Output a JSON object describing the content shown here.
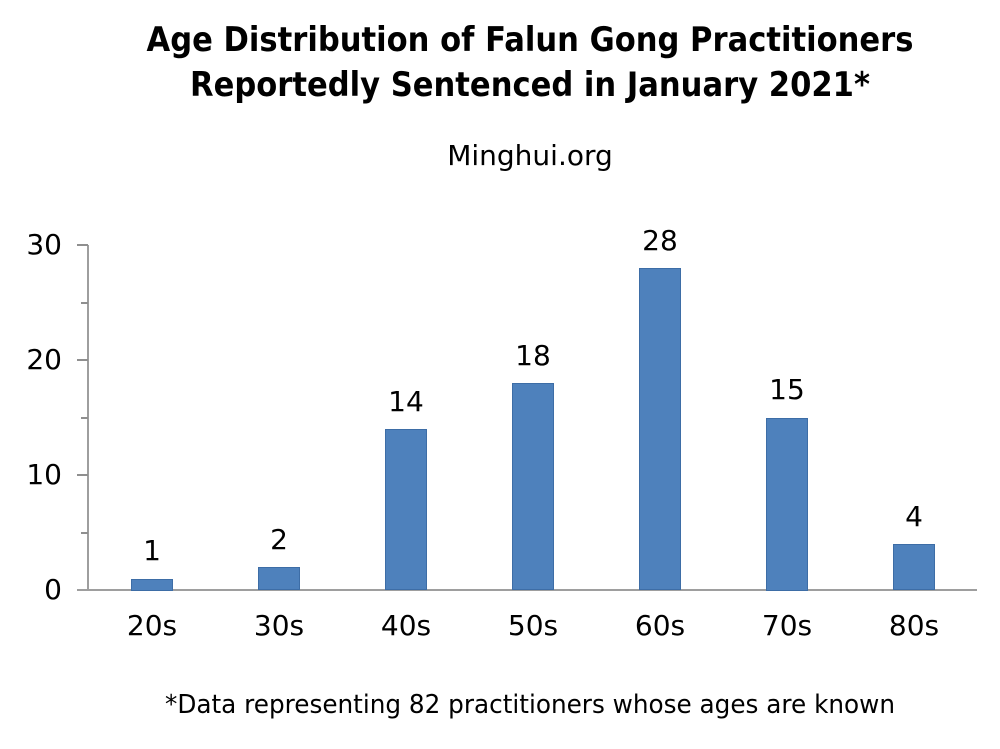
{
  "chart_data": {
    "type": "bar",
    "title": "Age Distribution of Falun Gong Practitioners\nReportedly Sentenced in January 2021*",
    "subtitle": "Minghui.org",
    "footnote": "*Data representing 82 practitioners whose ages are known",
    "categories": [
      "20s",
      "30s",
      "40s",
      "50s",
      "60s",
      "70s",
      "80s"
    ],
    "values": [
      1,
      2,
      14,
      18,
      28,
      15,
      4
    ],
    "xlabel": "",
    "ylabel": "",
    "ylim": [
      0,
      30
    ],
    "ytick_major": [
      0,
      10,
      20,
      30
    ],
    "ytick_minor": [
      5,
      15,
      25
    ],
    "grid": "off",
    "legend": "none",
    "bar_color": "#4e81bc",
    "bar_border_color": "#3d6da6",
    "axis_color": "#9e9e9e",
    "text_color": "#000000",
    "background_color": "#ffffff"
  }
}
